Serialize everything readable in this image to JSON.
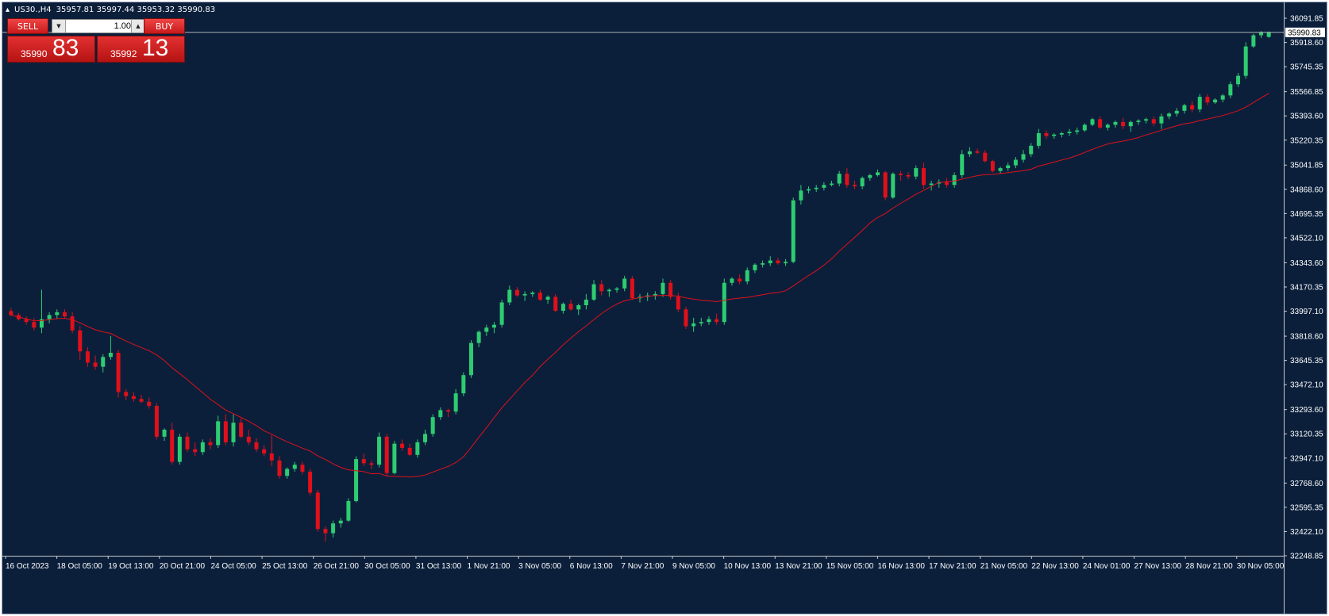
{
  "header": {
    "symbol": "US30.,H4",
    "ohlc": "35957.81 35997.44 35953.32 35990.83"
  },
  "trade_panel": {
    "sell_label": "SELL",
    "buy_label": "BUY",
    "lot_value": "1.00",
    "sell_price_main": "35990",
    "sell_price_big": "83",
    "buy_price_main": "35992",
    "buy_price_big": "13"
  },
  "colors": {
    "background": "#0b1f3b",
    "bull": "#2ecc71",
    "bear": "#e0101a",
    "ma_line": "#e0101a",
    "price_line": "#c8c8c8"
  },
  "current_price_label": "35990.83",
  "chart_data": {
    "type": "candlestick",
    "title": "",
    "ylim": [
      32248.85,
      36091.85
    ],
    "y_ticks": [
      "36091.85",
      "35918.60",
      "35745.35",
      "35566.85",
      "35393.60",
      "35220.35",
      "35041.85",
      "34868.60",
      "34695.35",
      "34522.10",
      "34343.60",
      "34170.35",
      "33997.10",
      "33818.60",
      "33645.35",
      "33472.10",
      "33293.60",
      "33120.35",
      "32947.10",
      "32768.60",
      "32595.35",
      "32422.10",
      "32248.85"
    ],
    "x_ticks": [
      "16 Oct 2023",
      "18 Oct 05:00",
      "19 Oct 13:00",
      "20 Oct 21:00",
      "24 Oct 05:00",
      "25 Oct 13:00",
      "26 Oct 21:00",
      "30 Oct 05:00",
      "31 Oct 13:00",
      "1 Nov 21:00",
      "3 Nov 05:00",
      "6 Nov 13:00",
      "7 Nov 21:00",
      "9 Nov 05:00",
      "10 Nov 13:00",
      "13 Nov 21:00",
      "15 Nov 05:00",
      "16 Nov 13:00",
      "17 Nov 21:00",
      "21 Nov 05:00",
      "22 Nov 13:00",
      "24 Nov 01:00",
      "27 Nov 13:00",
      "28 Nov 21:00",
      "30 Nov 05:00"
    ],
    "candles": [
      [
        33998,
        34020,
        33960,
        33970
      ],
      [
        33970,
        33985,
        33930,
        33940
      ],
      [
        33940,
        33960,
        33900,
        33920
      ],
      [
        33920,
        33950,
        33860,
        33880
      ],
      [
        33880,
        34150,
        33840,
        33940
      ],
      [
        33940,
        33990,
        33910,
        33970
      ],
      [
        33970,
        34010,
        33940,
        33990
      ],
      [
        33990,
        34010,
        33950,
        33960
      ],
      [
        33960,
        33990,
        33840,
        33860
      ],
      [
        33860,
        33890,
        33650,
        33710
      ],
      [
        33710,
        33740,
        33600,
        33630
      ],
      [
        33630,
        33680,
        33580,
        33600
      ],
      [
        33600,
        33690,
        33560,
        33670
      ],
      [
        33670,
        33820,
        33650,
        33700
      ],
      [
        33700,
        33720,
        33380,
        33420
      ],
      [
        33420,
        33440,
        33360,
        33390
      ],
      [
        33390,
        33420,
        33350,
        33370
      ],
      [
        33370,
        33400,
        33340,
        33350
      ],
      [
        33350,
        33380,
        33300,
        33320
      ],
      [
        33320,
        33340,
        33080,
        33100
      ],
      [
        33100,
        33160,
        33070,
        33150
      ],
      [
        33150,
        33200,
        32900,
        32920
      ],
      [
        32920,
        33120,
        32900,
        33100
      ],
      [
        33100,
        33130,
        32990,
        33010
      ],
      [
        33010,
        33060,
        32960,
        32990
      ],
      [
        32990,
        33080,
        32970,
        33060
      ],
      [
        33060,
        33090,
        33010,
        33040
      ],
      [
        33040,
        33250,
        33020,
        33210
      ],
      [
        33210,
        33260,
        33040,
        33060
      ],
      [
        33060,
        33260,
        33030,
        33200
      ],
      [
        33200,
        33230,
        33090,
        33100
      ],
      [
        33100,
        33150,
        33040,
        33060
      ],
      [
        33060,
        33090,
        32990,
        33010
      ],
      [
        33010,
        33040,
        32960,
        32980
      ],
      [
        32980,
        33110,
        32890,
        32930
      ],
      [
        32930,
        32960,
        32800,
        32820
      ],
      [
        32820,
        32880,
        32800,
        32870
      ],
      [
        32870,
        32920,
        32850,
        32900
      ],
      [
        32900,
        32920,
        32830,
        32850
      ],
      [
        32850,
        32870,
        32680,
        32700
      ],
      [
        32700,
        32720,
        32420,
        32440
      ],
      [
        32440,
        32460,
        32350,
        32410
      ],
      [
        32410,
        32500,
        32380,
        32480
      ],
      [
        32480,
        32520,
        32450,
        32500
      ],
      [
        32500,
        32660,
        32490,
        32640
      ],
      [
        32640,
        32960,
        32630,
        32940
      ],
      [
        32940,
        32980,
        32890,
        32910
      ],
      [
        32910,
        32930,
        32870,
        32900
      ],
      [
        32900,
        33130,
        32880,
        33100
      ],
      [
        33100,
        33120,
        32820,
        32840
      ],
      [
        32840,
        33070,
        32830,
        33050
      ],
      [
        33050,
        33080,
        33000,
        33020
      ],
      [
        33020,
        33050,
        32960,
        32970
      ],
      [
        32970,
        33080,
        32950,
        33060
      ],
      [
        33060,
        33150,
        33040,
        33120
      ],
      [
        33120,
        33260,
        33100,
        33240
      ],
      [
        33240,
        33310,
        33220,
        33290
      ],
      [
        33290,
        33300,
        33240,
        33280
      ],
      [
        33280,
        33440,
        33260,
        33410
      ],
      [
        33410,
        33560,
        33390,
        33540
      ],
      [
        33540,
        33790,
        33520,
        33770
      ],
      [
        33770,
        33860,
        33740,
        33850
      ],
      [
        33850,
        33900,
        33820,
        33880
      ],
      [
        33880,
        33920,
        33840,
        33900
      ],
      [
        33900,
        34080,
        33880,
        34060
      ],
      [
        34060,
        34180,
        34040,
        34150
      ],
      [
        34150,
        34170,
        34100,
        34110
      ],
      [
        34110,
        34140,
        34070,
        34120
      ],
      [
        34120,
        34140,
        34100,
        34130
      ],
      [
        34130,
        34150,
        34070,
        34080
      ],
      [
        34080,
        34110,
        34050,
        34100
      ],
      [
        34100,
        34120,
        33990,
        34000
      ],
      [
        34000,
        34060,
        33980,
        34050
      ],
      [
        34050,
        34080,
        34000,
        34010
      ],
      [
        34010,
        34050,
        33970,
        34040
      ],
      [
        34040,
        34120,
        34010,
        34080
      ],
      [
        34080,
        34220,
        34070,
        34190
      ],
      [
        34190,
        34220,
        34110,
        34140
      ],
      [
        34140,
        34160,
        34100,
        34150
      ],
      [
        34150,
        34170,
        34130,
        34160
      ],
      [
        34160,
        34250,
        34140,
        34230
      ],
      [
        34230,
        34250,
        34080,
        34090
      ],
      [
        34090,
        34120,
        34060,
        34100
      ],
      [
        34100,
        34130,
        34070,
        34110
      ],
      [
        34110,
        34140,
        34080,
        34120
      ],
      [
        34120,
        34230,
        34100,
        34200
      ],
      [
        34200,
        34220,
        34080,
        34100
      ],
      [
        34100,
        34130,
        33990,
        34010
      ],
      [
        34010,
        34030,
        33870,
        33890
      ],
      [
        33890,
        33950,
        33850,
        33910
      ],
      [
        33910,
        33950,
        33890,
        33920
      ],
      [
        33920,
        33960,
        33900,
        33940
      ],
      [
        33940,
        33980,
        33900,
        33920
      ],
      [
        33920,
        34230,
        33900,
        34200
      ],
      [
        34200,
        34240,
        34180,
        34230
      ],
      [
        34230,
        34260,
        34190,
        34210
      ],
      [
        34210,
        34310,
        34190,
        34290
      ],
      [
        34290,
        34340,
        34270,
        34330
      ],
      [
        34330,
        34360,
        34310,
        34340
      ],
      [
        34340,
        34390,
        34320,
        34360
      ],
      [
        34360,
        34380,
        34330,
        34340
      ],
      [
        34340,
        34370,
        34320,
        34350
      ],
      [
        34350,
        34810,
        34340,
        34790
      ],
      [
        34790,
        34900,
        34760,
        34860
      ],
      [
        34860,
        34890,
        34840,
        34870
      ],
      [
        34870,
        34900,
        34850,
        34880
      ],
      [
        34880,
        34920,
        34860,
        34900
      ],
      [
        34900,
        34930,
        34890,
        34910
      ],
      [
        34910,
        35000,
        34890,
        34980
      ],
      [
        34980,
        35020,
        34880,
        34900
      ],
      [
        34900,
        34930,
        34870,
        34890
      ],
      [
        34890,
        34960,
        34870,
        34950
      ],
      [
        34950,
        34980,
        34930,
        34970
      ],
      [
        34970,
        35010,
        34960,
        34990
      ],
      [
        34990,
        35000,
        34790,
        34810
      ],
      [
        34810,
        34990,
        34800,
        34980
      ],
      [
        34980,
        35000,
        34930,
        34970
      ],
      [
        34970,
        34990,
        34940,
        34960
      ],
      [
        34960,
        35040,
        34940,
        35020
      ],
      [
        35020,
        35060,
        34870,
        34900
      ],
      [
        34900,
        34930,
        34860,
        34910
      ],
      [
        34910,
        34940,
        34880,
        34920
      ],
      [
        34920,
        34950,
        34880,
        34900
      ],
      [
        34900,
        34990,
        34880,
        34970
      ],
      [
        34970,
        35150,
        34950,
        35120
      ],
      [
        35120,
        35170,
        35100,
        35140
      ],
      [
        35140,
        35160,
        35120,
        35130
      ],
      [
        35130,
        35150,
        35060,
        35070
      ],
      [
        35070,
        35080,
        34990,
        35000
      ],
      [
        35000,
        35030,
        34980,
        35020
      ],
      [
        35020,
        35060,
        35000,
        35040
      ],
      [
        35040,
        35100,
        35020,
        35080
      ],
      [
        35080,
        35150,
        35060,
        35120
      ],
      [
        35120,
        35200,
        35100,
        35180
      ],
      [
        35180,
        35300,
        35160,
        35270
      ],
      [
        35270,
        35290,
        35230,
        35250
      ],
      [
        35250,
        35270,
        35230,
        35260
      ],
      [
        35260,
        35280,
        35240,
        35270
      ],
      [
        35270,
        35300,
        35250,
        35280
      ],
      [
        35280,
        35310,
        35260,
        35290
      ],
      [
        35290,
        35340,
        35280,
        35330
      ],
      [
        35330,
        35380,
        35320,
        35370
      ],
      [
        35370,
        35390,
        35300,
        35310
      ],
      [
        35310,
        35340,
        35290,
        35330
      ],
      [
        35330,
        35360,
        35310,
        35350
      ],
      [
        35350,
        35380,
        35300,
        35320
      ],
      [
        35320,
        35360,
        35280,
        35350
      ],
      [
        35350,
        35370,
        35330,
        35360
      ],
      [
        35360,
        35380,
        35340,
        35370
      ],
      [
        35370,
        35390,
        35320,
        35340
      ],
      [
        35340,
        35410,
        35300,
        35390
      ],
      [
        35390,
        35420,
        35370,
        35410
      ],
      [
        35410,
        35450,
        35390,
        35430
      ],
      [
        35430,
        35480,
        35410,
        35470
      ],
      [
        35470,
        35500,
        35420,
        35440
      ],
      [
        35440,
        35550,
        35420,
        35530
      ],
      [
        35530,
        35550,
        35470,
        35490
      ],
      [
        35490,
        35520,
        35480,
        35510
      ],
      [
        35510,
        35550,
        35490,
        35540
      ],
      [
        35540,
        35640,
        35520,
        35620
      ],
      [
        35620,
        35700,
        35600,
        35680
      ],
      [
        35680,
        35920,
        35660,
        35890
      ],
      [
        35890,
        35980,
        35880,
        35970
      ],
      [
        35970,
        36000,
        35950,
        35990
      ],
      [
        35957.81,
        35997.44,
        35953.32,
        35990.83
      ]
    ],
    "moving_average": "red line following the trend (approx. 20-period MA)"
  }
}
